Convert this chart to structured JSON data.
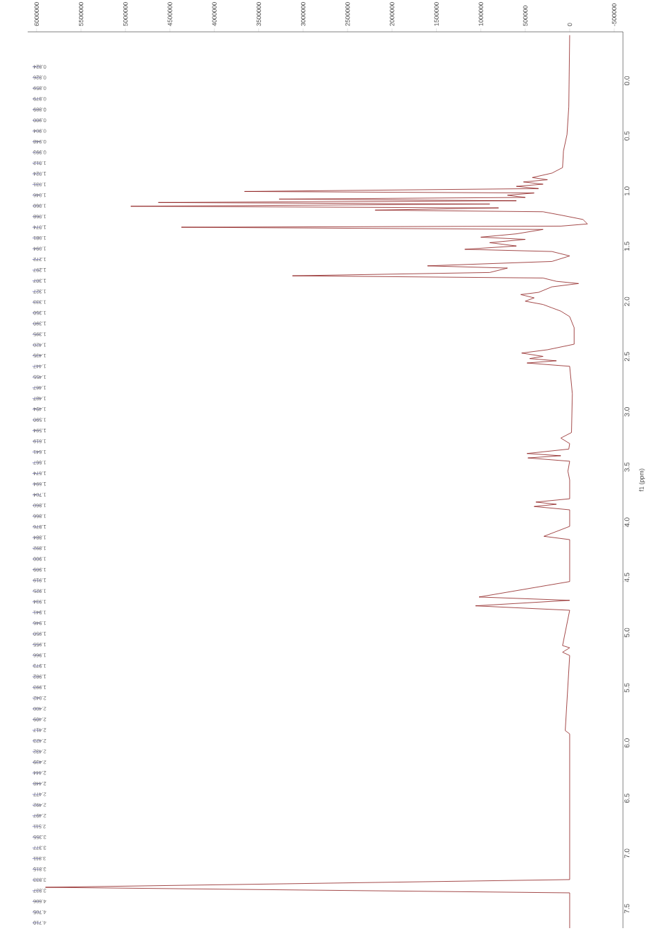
{
  "chart_data": {
    "type": "line",
    "ylabel": "f1 (ppm)",
    "color": "#8b1a1a",
    "values": [
      -0.45,
      0.2,
      0.45,
      0.6,
      0.75,
      0.8,
      0.84,
      0.86,
      0.88,
      0.9,
      0.92,
      0.94,
      0.966,
      0.98,
      1.0,
      1.02,
      1.035,
      1.05,
      1.066,
      1.08,
      1.1,
      1.115,
      1.135,
      1.15,
      1.18,
      1.22,
      1.26,
      1.28,
      1.29,
      1.31,
      1.35,
      1.38,
      1.4,
      1.43,
      1.46,
      1.49,
      1.51,
      1.55,
      1.6,
      1.64,
      1.66,
      1.7,
      1.73,
      1.75,
      1.78,
      1.8,
      1.83,
      1.88,
      1.9,
      1.93,
      1.96,
      1.99,
      2.02,
      2.05,
      2.1,
      2.2,
      2.35,
      2.4,
      2.43,
      2.46,
      2.48,
      2.5,
      2.52,
      2.55,
      2.8,
      3.15,
      3.2,
      3.25,
      3.3,
      3.34,
      3.36,
      3.38,
      3.41,
      3.5,
      3.58,
      3.75,
      3.78,
      3.8,
      3.82,
      3.85,
      4.0,
      4.09,
      4.12,
      4.5,
      4.64,
      4.67,
      4.72,
      4.76,
      5.08,
      5.1,
      5.14,
      5.17,
      5.85,
      5.88,
      7.2,
      7.27,
      7.32,
      7.64
    ],
    "x": [
      0,
      10000,
      30000,
      70000,
      80000,
      200000,
      420000,
      250000,
      520000,
      300000,
      600000,
      350000,
      3660000,
      400000,
      700000,
      500000,
      3270000,
      600000,
      4630000,
      900000,
      4940000,
      800000,
      2190000,
      300000,
      100000,
      -150000,
      -200000,
      100000,
      4370000,
      300000,
      600000,
      1000000,
      500000,
      900000,
      600000,
      1180000,
      200000,
      0,
      200000,
      1600000,
      700000,
      900000,
      3120000,
      300000,
      150000,
      -100000,
      200000,
      350000,
      550000,
      400000,
      500000,
      300000,
      200000,
      100000,
      0,
      -50000,
      -50000,
      250000,
      540000,
      300000,
      450000,
      150000,
      480000,
      0,
      -30000,
      -20000,
      100000,
      0,
      10000,
      480000,
      100000,
      470000,
      0,
      20000,
      0,
      0,
      380000,
      150000,
      400000,
      0,
      0,
      290000,
      0,
      0,
      1020000,
      0,
      1060000,
      0,
      80000,
      0,
      80000,
      0,
      50000,
      0,
      0,
      5900000,
      0,
      0
    ],
    "ylim": [
      7.64,
      -0.48
    ],
    "yticks": [
      {
        "value": 0,
        "label": "0.0"
      },
      {
        "value": 0.5,
        "label": "0.5"
      },
      {
        "value": 1,
        "label": "1.0"
      },
      {
        "value": 1.5,
        "label": "1.5"
      },
      {
        "value": 2,
        "label": "2.0"
      },
      {
        "value": 2.5,
        "label": "2.5"
      },
      {
        "value": 3,
        "label": "3.0"
      },
      {
        "value": 3.5,
        "label": "3.5"
      },
      {
        "value": 4,
        "label": "4.0"
      },
      {
        "value": 4.5,
        "label": "4.5"
      },
      {
        "value": 5,
        "label": "5.0"
      },
      {
        "value": 5.5,
        "label": "5.5"
      },
      {
        "value": 6,
        "label": "6.0"
      },
      {
        "value": 6.5,
        "label": "6.5"
      },
      {
        "value": 7,
        "label": "7.0"
      },
      {
        "value": 7.5,
        "label": "7.5"
      }
    ],
    "xlim": [
      6100000,
      -600000
    ],
    "xticks": [
      -500000,
      0,
      500000,
      1000000,
      1500000,
      2000000,
      2500000,
      3000000,
      3500000,
      4000000,
      4500000,
      5000000,
      5500000,
      6000000
    ],
    "annotations": [
      "0.824",
      "0.826",
      "0.859",
      "0.879",
      "0.889",
      "0.900",
      "0.904",
      "0.948",
      "0.993",
      "1.012",
      "1.024",
      "1.031",
      "1.046",
      "1.060",
      "1.068",
      "1.074",
      "1.081",
      "1.094",
      "1.272",
      "1.297",
      "1.307",
      "1.327",
      "1.333",
      "1.350",
      "1.390",
      "1.395",
      "1.420",
      "1.435",
      "1.447",
      "1.455",
      "1.467",
      "1.487",
      "1.494",
      "1.590",
      "1.594",
      "1.619",
      "1.641",
      "1.667",
      "1.674",
      "1.694",
      "1.704",
      "1.860",
      "1.866",
      "1.876",
      "1.884",
      "1.892",
      "1.900",
      "1.909",
      "1.919",
      "1.925",
      "1.934",
      "1.941",
      "1.946",
      "1.950",
      "1.955",
      "1.966",
      "1.973",
      "1.982",
      "1.993",
      "2.042",
      "2.400",
      "2.409",
      "2.417",
      "2.423",
      "2.432",
      "2.439",
      "2.444",
      "2.448",
      "2.477",
      "2.492",
      "2.497",
      "2.511",
      "3.355",
      "3.377",
      "3.811",
      "3.815",
      "3.833",
      "3.837",
      "4.606",
      "4.705",
      "4.710"
    ]
  }
}
